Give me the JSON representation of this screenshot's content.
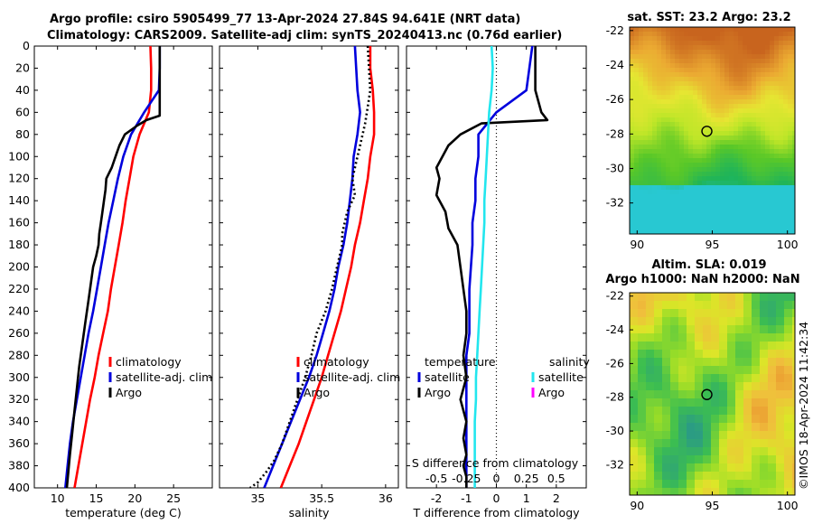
{
  "header": {
    "title_line1": "Argo profile: csiro 5905499_77 13-Apr-2024 27.84S 94.641E (NRT data)",
    "title_line2": "Climatology: CARS2009. Satellite-adj clim: synTS_20240413.nc (0.76d earlier)"
  },
  "watermark": "©IMOS 18-Apr-2024 11:42:34",
  "colors": {
    "red": "#ff0000",
    "blue": "#0000dd",
    "black": "#000000",
    "cyan": "#22e6ee",
    "magenta": "#ff00ff"
  },
  "chart_data": [
    {
      "type": "line",
      "id": "temperature",
      "xlabel": "temperature (deg C)",
      "ylabel": "",
      "xlim": [
        7,
        30
      ],
      "ylim": [
        400,
        0
      ],
      "xticks": [
        10,
        15,
        20,
        25
      ],
      "yticks": [
        0,
        20,
        40,
        60,
        80,
        100,
        120,
        140,
        160,
        180,
        200,
        220,
        240,
        260,
        280,
        300,
        320,
        340,
        360,
        380,
        400
      ],
      "legend": [
        "climatology",
        "satellite-adj. clim",
        "Argo"
      ],
      "series": [
        {
          "name": "climatology",
          "color": "#ff0000",
          "x": [
            22.0,
            22.1,
            22.1,
            21.8,
            20.6,
            19.8,
            19.3,
            18.8,
            18.4,
            17.9,
            17.4,
            16.9,
            16.5,
            15.9,
            15.3,
            14.8,
            14.2,
            13.7,
            13.2,
            12.7,
            12.2
          ],
          "y": [
            0,
            20,
            40,
            60,
            80,
            100,
            120,
            140,
            160,
            180,
            200,
            220,
            240,
            260,
            280,
            300,
            320,
            340,
            360,
            380,
            400
          ]
        },
        {
          "name": "satellite-adj. clim",
          "color": "#0000dd",
          "x": [
            23.2,
            23.2,
            23.1,
            21.2,
            19.5,
            18.5,
            17.8,
            17.2,
            16.6,
            16.1,
            15.6,
            15.1,
            14.6,
            14.0,
            13.5,
            13.0,
            12.5,
            12.0,
            11.6,
            11.3,
            11.0
          ],
          "y": [
            0,
            20,
            40,
            60,
            80,
            100,
            120,
            140,
            160,
            180,
            200,
            220,
            240,
            260,
            280,
            300,
            320,
            340,
            360,
            380,
            400
          ]
        },
        {
          "name": "Argo",
          "color": "#000000",
          "x": [
            23.2,
            23.2,
            23.2,
            23.2,
            21.5,
            20.3,
            18.7,
            18.0,
            17.5,
            17.0,
            16.3,
            16.2,
            16.0,
            15.8,
            15.6,
            15.4,
            15.3,
            15.0,
            14.6,
            14.4,
            14.2,
            14.0,
            13.6,
            13.2,
            12.8,
            12.5,
            12.2,
            11.9,
            11.6,
            11.4,
            11.2
          ],
          "y": [
            0,
            30,
            60,
            63,
            67,
            72,
            80,
            90,
            100,
            110,
            120,
            130,
            140,
            150,
            160,
            170,
            180,
            190,
            200,
            210,
            220,
            230,
            250,
            270,
            290,
            310,
            330,
            350,
            370,
            385,
            400
          ]
        }
      ]
    },
    {
      "type": "line",
      "id": "salinity",
      "xlabel": "salinity",
      "ylabel": "",
      "xlim": [
        34.7,
        36.1
      ],
      "ylim": [
        400,
        0
      ],
      "xticks": [
        35,
        35.5,
        36
      ],
      "legend": [
        "climatology",
        "satellite-adj. clim",
        "Argo"
      ],
      "series": [
        {
          "name": "climatology",
          "color": "#ff0000",
          "x": [
            35.88,
            35.88,
            35.9,
            35.91,
            35.91,
            35.88,
            35.86,
            35.83,
            35.8,
            35.76,
            35.73,
            35.69,
            35.65,
            35.6,
            35.55,
            35.5,
            35.44,
            35.38,
            35.32,
            35.25,
            35.18
          ],
          "y": [
            0,
            20,
            40,
            60,
            80,
            100,
            120,
            140,
            160,
            180,
            200,
            220,
            240,
            260,
            280,
            300,
            320,
            340,
            360,
            380,
            400
          ]
        },
        {
          "name": "satellite-adj. clim",
          "color": "#0000dd",
          "x": [
            35.76,
            35.77,
            35.78,
            35.8,
            35.78,
            35.75,
            35.74,
            35.72,
            35.7,
            35.67,
            35.63,
            35.6,
            35.56,
            35.51,
            35.46,
            35.4,
            35.33,
            35.26,
            35.19,
            35.12,
            35.05
          ],
          "y": [
            0,
            20,
            40,
            60,
            80,
            100,
            120,
            140,
            160,
            180,
            200,
            220,
            240,
            260,
            280,
            300,
            320,
            340,
            360,
            380,
            400
          ]
        },
        {
          "name": "Argo",
          "color": "#000000",
          "x": [
            35.86,
            35.87,
            35.88,
            35.86,
            35.84,
            35.8,
            35.77,
            35.74,
            35.76,
            35.7,
            35.66,
            35.66,
            35.62,
            35.58,
            35.53,
            35.46,
            35.42,
            35.37,
            35.31,
            35.25,
            35.19,
            35.13,
            35.07,
            35.0,
            34.94
          ],
          "y": [
            0,
            20,
            40,
            55,
            70,
            90,
            105,
            120,
            135,
            150,
            170,
            180,
            200,
            220,
            240,
            260,
            280,
            300,
            320,
            340,
            360,
            375,
            385,
            395,
            400
          ]
        }
      ]
    },
    {
      "type": "line",
      "id": "difference",
      "xlabel": "T difference from climatology",
      "xlabel_top": "S difference from climatology",
      "xlim": [
        -3,
        3
      ],
      "ylim": [
        400,
        0
      ],
      "xticks": [
        -2,
        -1,
        0,
        1,
        2
      ],
      "xticks_top": [
        -0.5,
        -0.25,
        0,
        0.25,
        0.5
      ],
      "legend_temperature": {
        "title": "temperature",
        "items": [
          "satellite",
          "Argo"
        ]
      },
      "legend_salinity": {
        "title": "salinity",
        "items": [
          "satellite",
          "Argo"
        ]
      },
      "series": [
        {
          "name": "temperature satellite",
          "color": "#0000dd",
          "x": [
            1.2,
            1.1,
            1.0,
            0.0,
            -0.6,
            -0.6,
            -0.7,
            -0.7,
            -0.8,
            -0.8,
            -0.85,
            -0.9,
            -0.9,
            -0.9,
            -1.0,
            -1.0,
            -1.0,
            -1.0,
            -1.0,
            -1.0,
            -1.0
          ],
          "y": [
            0,
            20,
            40,
            60,
            80,
            100,
            120,
            140,
            160,
            180,
            200,
            220,
            240,
            260,
            280,
            300,
            320,
            340,
            360,
            380,
            400
          ]
        },
        {
          "name": "temperature Argo",
          "color": "#000000",
          "x": [
            1.3,
            1.3,
            1.3,
            1.5,
            1.7,
            -0.5,
            -1.2,
            -1.6,
            -1.8,
            -2.0,
            -1.9,
            -2.0,
            -1.7,
            -1.6,
            -1.3,
            -1.2,
            -1.1,
            -1.0,
            -1.0,
            -1.1,
            -1.0,
            -1.2,
            -1.0,
            -1.1,
            -1.0,
            -1.1,
            -1.0,
            -1.0
          ],
          "y": [
            0,
            20,
            40,
            60,
            67,
            70,
            80,
            90,
            100,
            110,
            120,
            135,
            150,
            165,
            180,
            200,
            220,
            240,
            260,
            280,
            300,
            320,
            340,
            355,
            370,
            380,
            390,
            400
          ]
        },
        {
          "name": "salinity satellite",
          "color": "#22e6ee",
          "x": [
            -0.04,
            -0.03,
            -0.04,
            -0.06,
            -0.07,
            -0.08,
            -0.09,
            -0.1,
            -0.1,
            -0.11,
            -0.12,
            -0.13,
            -0.14,
            -0.15,
            -0.16,
            -0.17,
            -0.17,
            -0.18,
            -0.18,
            -0.18,
            -0.18
          ],
          "y": [
            0,
            20,
            40,
            60,
            80,
            100,
            120,
            140,
            160,
            180,
            200,
            220,
            240,
            260,
            280,
            300,
            320,
            340,
            360,
            380,
            400
          ]
        }
      ]
    },
    {
      "type": "heatmap",
      "id": "sat-sst-map",
      "title": "sat. SST: 23.2 Argo: 23.2",
      "xticks": [
        90,
        95,
        100
      ],
      "yticks": [
        -22,
        -24,
        -26,
        -28,
        -30,
        -32
      ],
      "xlim": [
        89.5,
        100.5
      ],
      "ylim": [
        -33.8,
        -21.8
      ],
      "marker": {
        "lon": 94.641,
        "lat": -27.84
      }
    },
    {
      "type": "heatmap",
      "id": "altimetry-map",
      "title_line1": "Altim. SLA: 0.019",
      "title_line2": "Argo h1000: NaN h2000: NaN",
      "xticks": [
        90,
        95,
        100
      ],
      "yticks": [
        -22,
        -24,
        -26,
        -28,
        -30,
        -32
      ],
      "xlim": [
        89.5,
        100.5
      ],
      "ylim": [
        -33.8,
        -21.8
      ],
      "marker": {
        "lon": 94.641,
        "lat": -27.84
      }
    }
  ]
}
